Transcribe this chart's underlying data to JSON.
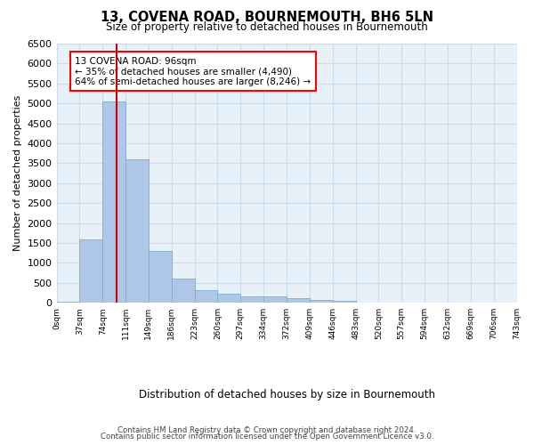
{
  "title": "13, COVENA ROAD, BOURNEMOUTH, BH6 5LN",
  "subtitle": "Size of property relative to detached houses in Bournemouth",
  "xlabel": "Distribution of detached houses by size in Bournemouth",
  "ylabel": "Number of detached properties",
  "footer_line1": "Contains HM Land Registry data © Crown copyright and database right 2024.",
  "footer_line2": "Contains public sector information licensed under the Open Government Licence v3.0.",
  "bin_labels": [
    "0sqm",
    "37sqm",
    "74sqm",
    "111sqm",
    "149sqm",
    "186sqm",
    "223sqm",
    "260sqm",
    "297sqm",
    "334sqm",
    "372sqm",
    "409sqm",
    "446sqm",
    "483sqm",
    "520sqm",
    "557sqm",
    "594sqm",
    "632sqm",
    "669sqm",
    "706sqm",
    "743sqm"
  ],
  "bar_values": [
    30,
    1600,
    5050,
    3600,
    1300,
    600,
    310,
    220,
    170,
    160,
    120,
    80,
    60,
    0,
    0,
    0,
    0,
    0,
    0,
    0
  ],
  "bar_color": "#aec6e8",
  "bar_edge_color": "#7aafd4",
  "grid_color": "#c8ddf0",
  "background_color": "#e8f0f8",
  "red_line_color": "#cc0000",
  "annotation_text": "13 COVENA ROAD: 96sqm\n← 35% of detached houses are smaller (4,490)\n64% of semi-detached houses are larger (8,246) →",
  "ylim": [
    0,
    6500
  ],
  "yticks": [
    0,
    500,
    1000,
    1500,
    2000,
    2500,
    3000,
    3500,
    4000,
    4500,
    5000,
    5500,
    6000,
    6500
  ]
}
